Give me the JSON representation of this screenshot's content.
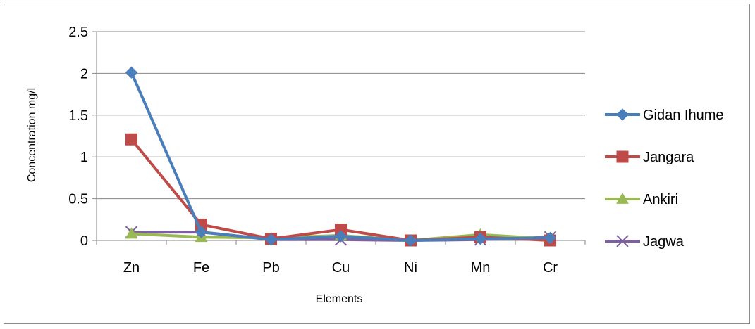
{
  "chart_data": {
    "type": "line",
    "title": "",
    "xlabel": "Elements",
    "ylabel": "Concentration mg/l",
    "categories": [
      "Zn",
      "Fe",
      "Pb",
      "Cu",
      "Ni",
      "Mn",
      "Cr"
    ],
    "ylim": [
      0,
      2.5
    ],
    "yticks": [
      "0",
      "0.5",
      "1",
      "1.5",
      "2",
      "2.5"
    ],
    "grid": "horizontal",
    "legend_position": "right",
    "series": [
      {
        "name": "Gidan Ihume",
        "color": "#4a7ebb",
        "marker": "diamond",
        "values": [
          2.01,
          0.1,
          0.01,
          0.05,
          0.0,
          0.02,
          0.03
        ]
      },
      {
        "name": "Jangara",
        "color": "#be4b48",
        "marker": "square",
        "values": [
          1.21,
          0.19,
          0.02,
          0.13,
          0.0,
          0.04,
          0.0
        ]
      },
      {
        "name": "Ankiri",
        "color": "#98b954",
        "marker": "triangle",
        "values": [
          0.08,
          0.04,
          0.03,
          0.06,
          0.0,
          0.07,
          0.02
        ]
      },
      {
        "name": "Jagwa",
        "color": "#7d60a0",
        "marker": "x",
        "values": [
          0.1,
          0.1,
          0.01,
          0.01,
          0.0,
          0.01,
          0.04
        ]
      }
    ]
  }
}
